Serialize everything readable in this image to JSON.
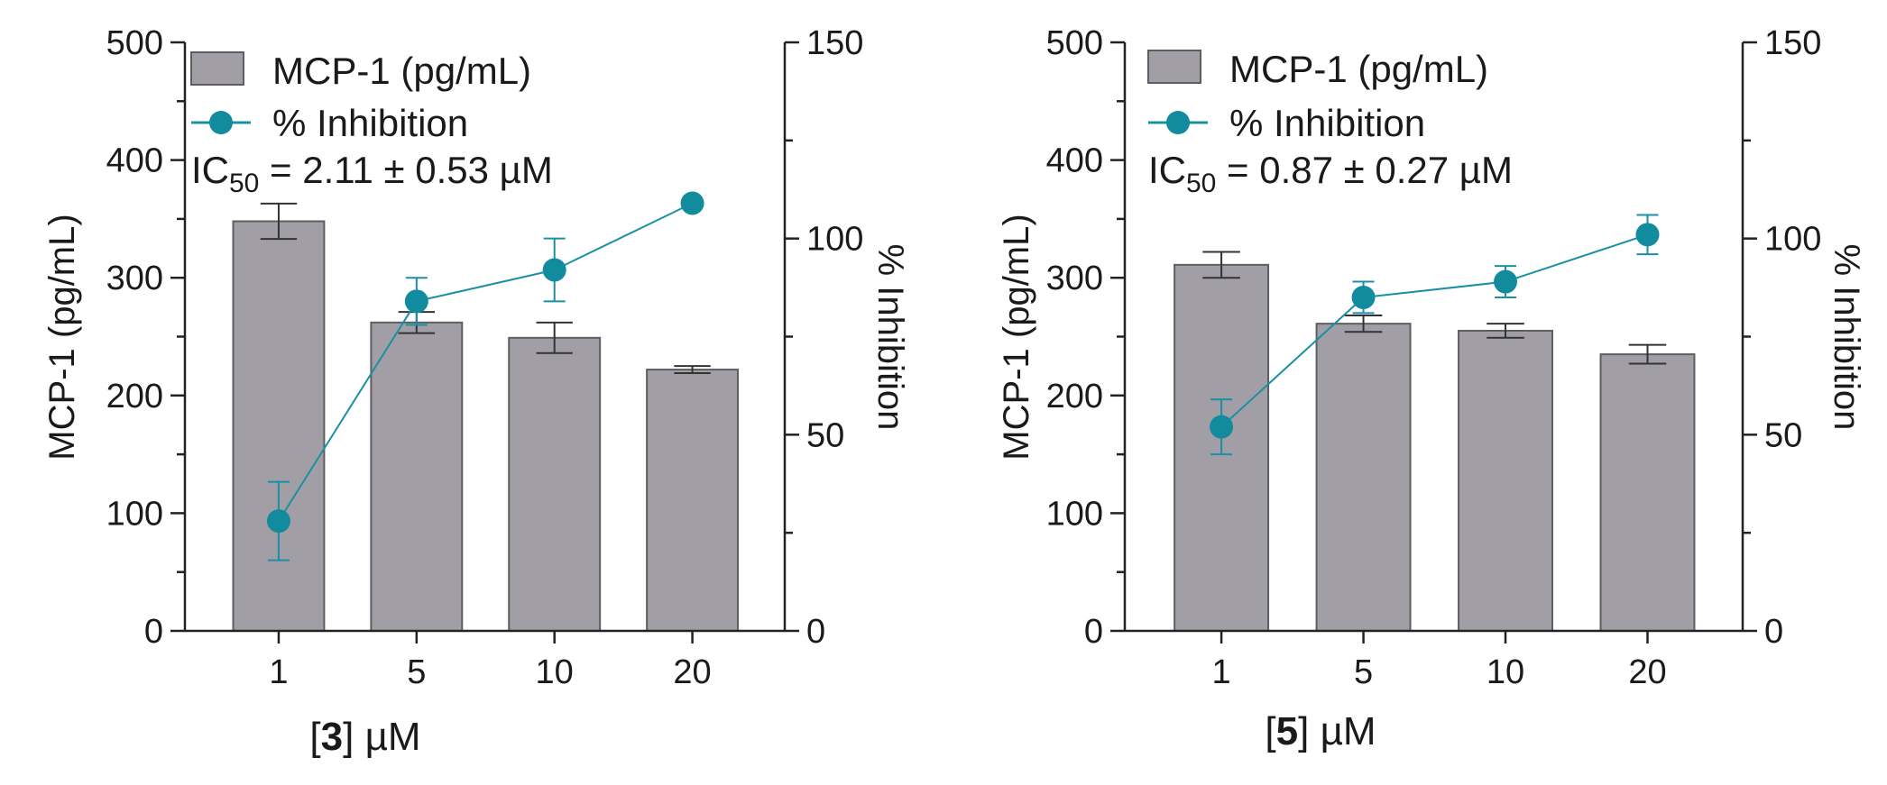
{
  "colors": {
    "bar_fill": "#a19fa5",
    "bar_stroke": "#5e5e62",
    "line_color": "#1b8fa3",
    "point_fill": "#138b9e",
    "axis": "#222222"
  },
  "legend": {
    "bar_label": "MCP-1 (pg/mL)",
    "line_label": "% Inhibition"
  },
  "chart_data": [
    {
      "type": "bar",
      "title": "",
      "compound": "3",
      "xlabel_open": "[",
      "xlabel_bold": "3",
      "xlabel_close": "] µM",
      "ylabel": "MCP-1 (pg/mL)",
      "y2label": "% Inhibition",
      "ic50_prefix": "IC",
      "ic50_sub": "50",
      "ic50_value": " = 2.11 ± 0.53 µM",
      "categories": [
        "1",
        "5",
        "10",
        "20"
      ],
      "ylim": [
        0,
        500
      ],
      "y2lim": [
        0,
        150
      ],
      "yticks": [
        "0",
        "100",
        "200",
        "300",
        "400",
        "500"
      ],
      "y2ticks": [
        "0",
        "50",
        "100",
        "150"
      ],
      "series": [
        {
          "name": "MCP-1 (pg/mL)",
          "axis": "left",
          "values": [
            348,
            262,
            249,
            222
          ],
          "errors": [
            15,
            9,
            13,
            3
          ]
        },
        {
          "name": "% Inhibition",
          "axis": "right",
          "values": [
            28,
            84,
            92,
            109
          ],
          "errors": [
            10,
            6,
            8,
            0
          ]
        }
      ]
    },
    {
      "type": "bar",
      "title": "",
      "compound": "5",
      "xlabel_open": "[",
      "xlabel_bold": "5",
      "xlabel_close": "] µM",
      "ylabel": "MCP-1 (pg/mL)",
      "y2label": "% Inhibition",
      "ic50_prefix": "IC",
      "ic50_sub": "50",
      "ic50_value": " = 0.87 ± 0.27 µM",
      "categories": [
        "1",
        "5",
        "10",
        "20"
      ],
      "ylim": [
        0,
        500
      ],
      "y2lim": [
        0,
        150
      ],
      "yticks": [
        "0",
        "100",
        "200",
        "300",
        "400",
        "500"
      ],
      "y2ticks": [
        "0",
        "50",
        "100",
        "150"
      ],
      "series": [
        {
          "name": "MCP-1 (pg/mL)",
          "axis": "left",
          "values": [
            311,
            261,
            255,
            235
          ],
          "errors": [
            11,
            7,
            6,
            8
          ]
        },
        {
          "name": "% Inhibition",
          "axis": "right",
          "values": [
            52,
            85,
            89,
            101
          ],
          "errors": [
            7,
            4,
            4,
            5
          ]
        }
      ]
    }
  ]
}
